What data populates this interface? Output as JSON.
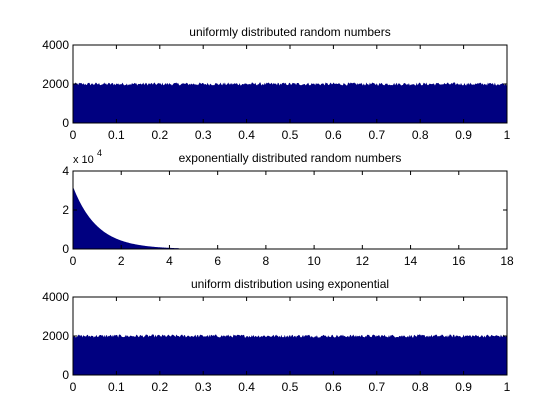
{
  "figure": {
    "background": "#ffffff"
  },
  "chart_data": [
    {
      "type": "bar",
      "title": "uniformly distributed random numbers",
      "xlim": [
        0,
        1
      ],
      "ylim": [
        0,
        4000
      ],
      "xticks": [
        0,
        0.1,
        0.2,
        0.3,
        0.4,
        0.5,
        0.6,
        0.7,
        0.8,
        0.9,
        1
      ],
      "xtick_labels": [
        "0",
        "0.1",
        "0.2",
        "0.3",
        "0.4",
        "0.5",
        "0.6",
        "0.7",
        "0.8",
        "0.9",
        "1"
      ],
      "yticks": [
        0,
        2000,
        4000
      ],
      "ytick_labels": [
        "0",
        "2000",
        "4000"
      ],
      "exponent_label": "",
      "color": "#000080",
      "series": [
        {
          "kind": "uniform",
          "level": 2000,
          "noise": 80,
          "bins": 500
        }
      ]
    },
    {
      "type": "bar",
      "title": "exponentially distributed random numbers",
      "xlim": [
        0,
        18
      ],
      "ylim": [
        0,
        40000
      ],
      "xticks": [
        0,
        2,
        4,
        6,
        8,
        10,
        12,
        14,
        16,
        18
      ],
      "xtick_labels": [
        "0",
        "2",
        "4",
        "6",
        "8",
        "10",
        "12",
        "14",
        "16",
        "18"
      ],
      "yticks": [
        0,
        20000,
        40000
      ],
      "ytick_labels": [
        "0",
        "2",
        "4"
      ],
      "exponent_label": "x 10",
      "exponent_power": "4",
      "color": "#000080",
      "series": [
        {
          "kind": "exponential",
          "peak": 32000,
          "rate": 1,
          "start": 0,
          "end": 4.4
        }
      ]
    },
    {
      "type": "bar",
      "title": "uniform distribution using exponential",
      "xlim": [
        0,
        1
      ],
      "ylim": [
        0,
        4000
      ],
      "xticks": [
        0,
        0.1,
        0.2,
        0.3,
        0.4,
        0.5,
        0.6,
        0.7,
        0.8,
        0.9,
        1
      ],
      "xtick_labels": [
        "0",
        "0.1",
        "0.2",
        "0.3",
        "0.4",
        "0.5",
        "0.6",
        "0.7",
        "0.8",
        "0.9",
        "1"
      ],
      "yticks": [
        0,
        2000,
        4000
      ],
      "ytick_labels": [
        "0",
        "2000",
        "4000"
      ],
      "exponent_label": "",
      "color": "#000080",
      "series": [
        {
          "kind": "uniform",
          "level": 2000,
          "noise": 80,
          "bins": 500
        }
      ]
    }
  ]
}
